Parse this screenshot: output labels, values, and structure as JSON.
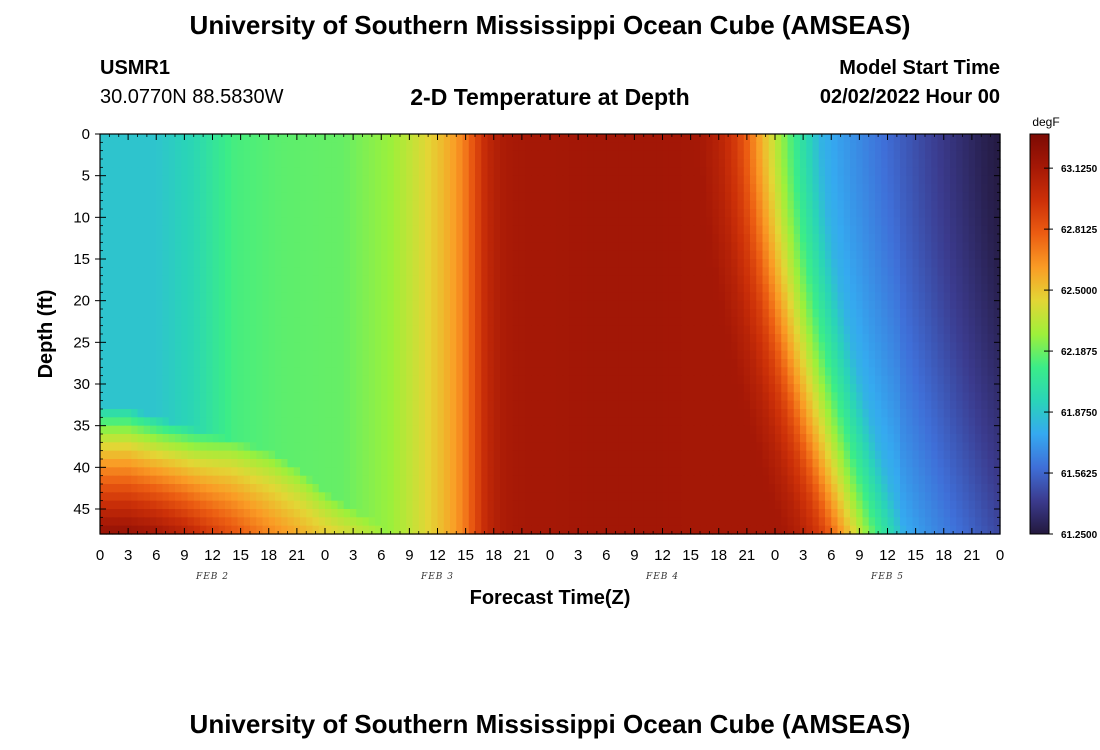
{
  "header": {
    "title": "University of Southern Mississippi Ocean Cube (AMSEAS)",
    "station_id": "USMR1",
    "station_coords": "30.0770N  88.5830W",
    "subtitle": "2-D Temperature at Depth",
    "model_start_label": "Model Start Time",
    "model_start_value": "02/02/2022 Hour 00"
  },
  "footer": {
    "title": "University of Southern Mississippi Ocean Cube (AMSEAS)"
  },
  "chart_data": {
    "type": "heatmap",
    "title": "2-D Temperature at Depth",
    "xlabel": "Forecast Time(Z)",
    "ylabel": "Depth (ft)",
    "x_unit": "hours since 02/02/2022 Hour 00",
    "xlim": [
      0,
      96
    ],
    "ylim": [
      0,
      48
    ],
    "y_inverted": true,
    "x_tick_labels": [
      "0",
      "3",
      "6",
      "9",
      "12",
      "15",
      "18",
      "21",
      "0",
      "3",
      "6",
      "9",
      "12",
      "15",
      "18",
      "21",
      "0",
      "3",
      "6",
      "9",
      "12",
      "15",
      "18",
      "21",
      "0",
      "3",
      "6",
      "9",
      "12",
      "15",
      "18",
      "21",
      "0"
    ],
    "y_ticks": [
      0,
      5,
      10,
      15,
      20,
      25,
      30,
      35,
      40,
      45
    ],
    "day_labels": [
      {
        "label": "FEB 2",
        "x": 12
      },
      {
        "label": "FEB 3",
        "x": 36
      },
      {
        "label": "FEB 4",
        "x": 60
      },
      {
        "label": "FEB 5",
        "x": 84
      }
    ],
    "colorbar": {
      "unit": "degF",
      "min": 61.25,
      "max": 63.3,
      "tick_values": [
        61.25,
        61.5625,
        61.875,
        62.1875,
        62.5,
        62.8125,
        63.125
      ],
      "tick_labels": [
        "61.2500",
        "61.5625",
        "61.8750",
        "62.1875",
        "62.5000",
        "62.8125",
        "63.1250"
      ],
      "colormap": [
        "#23183d",
        "#3b3b8e",
        "#3f6fd8",
        "#35a9f0",
        "#2ad4b8",
        "#3bed88",
        "#9ef03a",
        "#e3d635",
        "#fa9c25",
        "#ec5d12",
        "#cc3008",
        "#a51806",
        "#7c0a04"
      ]
    },
    "surface_profile": {
      "description": "temperature (degF) at 0 ft depth vs forecast hour",
      "hours": [
        0,
        6,
        10,
        14,
        19,
        22,
        26,
        28,
        31,
        34,
        36,
        38,
        39,
        40,
        41,
        42,
        43,
        44,
        46,
        48,
        52,
        56,
        60,
        64,
        66,
        68,
        69,
        70,
        71,
        72,
        74,
        76,
        77,
        79,
        82,
        85,
        88,
        91,
        94,
        96
      ],
      "values": [
        61.87,
        61.87,
        61.95,
        62.12,
        62.16,
        62.17,
        62.18,
        62.22,
        62.27,
        62.4,
        62.5,
        62.62,
        62.72,
        62.85,
        62.98,
        63.06,
        63.1,
        63.12,
        63.13,
        63.13,
        63.14,
        63.14,
        63.14,
        63.13,
        63.05,
        62.9,
        62.78,
        62.64,
        62.5,
        62.36,
        62.1,
        61.9,
        61.8,
        61.73,
        61.64,
        61.55,
        61.46,
        61.38,
        61.3,
        61.26
      ]
    },
    "bottom_warm_pool": {
      "description": "warm water near the bottom early in the forecast",
      "hours": [
        0,
        3,
        6,
        9,
        12,
        15,
        18,
        21,
        24,
        30
      ],
      "bottom_values": [
        63.2,
        63.2,
        63.15,
        63.05,
        62.92,
        62.8,
        62.68,
        62.58,
        62.48,
        62.3
      ],
      "top_depth_ft": [
        33,
        33,
        34,
        35,
        36,
        37,
        38,
        40,
        43,
        47
      ]
    },
    "front_tilt": {
      "description": "cooling front reaches bottom later than surface",
      "surface_hour": 71,
      "bottom_hour": 80
    }
  }
}
